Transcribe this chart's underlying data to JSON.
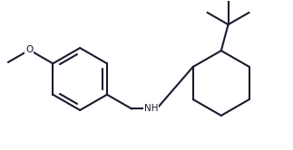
{
  "background_color": "#ffffff",
  "line_color": "#1a1a2e",
  "line_width": 1.5,
  "text_color": "#1a1a2e",
  "font_size": 7.5,
  "figsize": [
    3.23,
    1.66
  ],
  "dpi": 100,
  "xlim": [
    0,
    10.5
  ],
  "ylim": [
    0,
    5.5
  ]
}
